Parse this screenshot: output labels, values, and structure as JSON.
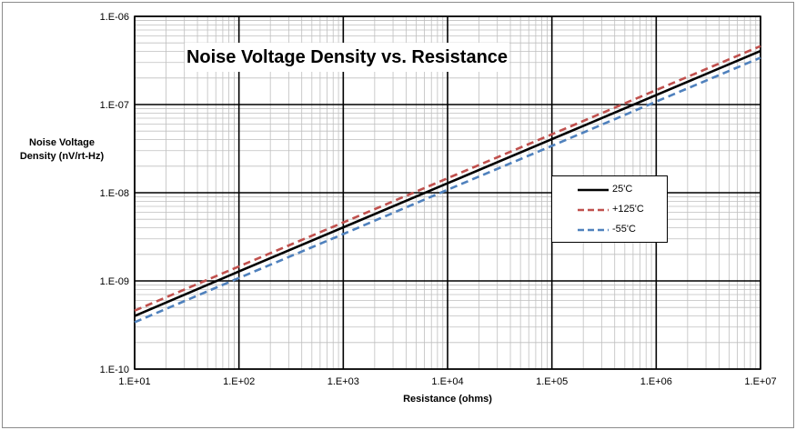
{
  "chart_data": {
    "type": "line",
    "title": "Noise Voltage Density vs. Resistance",
    "xlabel": "Resistance (ohms)",
    "ylabel_line1": "Noise Voltage",
    "ylabel_line2": "Density (nV/rt-Hz)",
    "xscale": "log",
    "yscale": "log",
    "xlim": [
      10,
      10000000
    ],
    "ylim": [
      1e-10,
      1e-06
    ],
    "grid": true,
    "legend_position": "right",
    "x_ticks": [
      "1.E+01",
      "1.E+02",
      "1.E+03",
      "1.E+04",
      "1.E+05",
      "1.E+06",
      "1.E+07"
    ],
    "y_ticks": [
      "1.E-06",
      "1.E-07",
      "1.E-08",
      "1.E-09",
      "1.E-10"
    ],
    "series": [
      {
        "name": "25'C",
        "color": "#000000",
        "dash": "solid",
        "x": [
          10,
          100,
          1000,
          10000,
          100000,
          1000000,
          10000000
        ],
        "y": [
          4e-10,
          1.28e-09,
          4.05e-09,
          1.28e-08,
          4.05e-08,
          1.28e-07,
          4.05e-07
        ]
      },
      {
        "name": "+125'C",
        "color": "#c0504d",
        "dash": "dashed",
        "x": [
          10,
          100,
          1000,
          10000,
          100000,
          1000000,
          10000000
        ],
        "y": [
          4.6e-10,
          1.46e-09,
          4.6e-09,
          1.46e-08,
          4.6e-08,
          1.46e-07,
          4.6e-07
        ]
      },
      {
        "name": "-55'C",
        "color": "#4f81bd",
        "dash": "dashed",
        "x": [
          10,
          100,
          1000,
          10000,
          100000,
          1000000,
          10000000
        ],
        "y": [
          3.4e-10,
          1.08e-09,
          3.4e-09,
          1.08e-08,
          3.4e-08,
          1.08e-07,
          3.4e-07
        ]
      }
    ]
  }
}
